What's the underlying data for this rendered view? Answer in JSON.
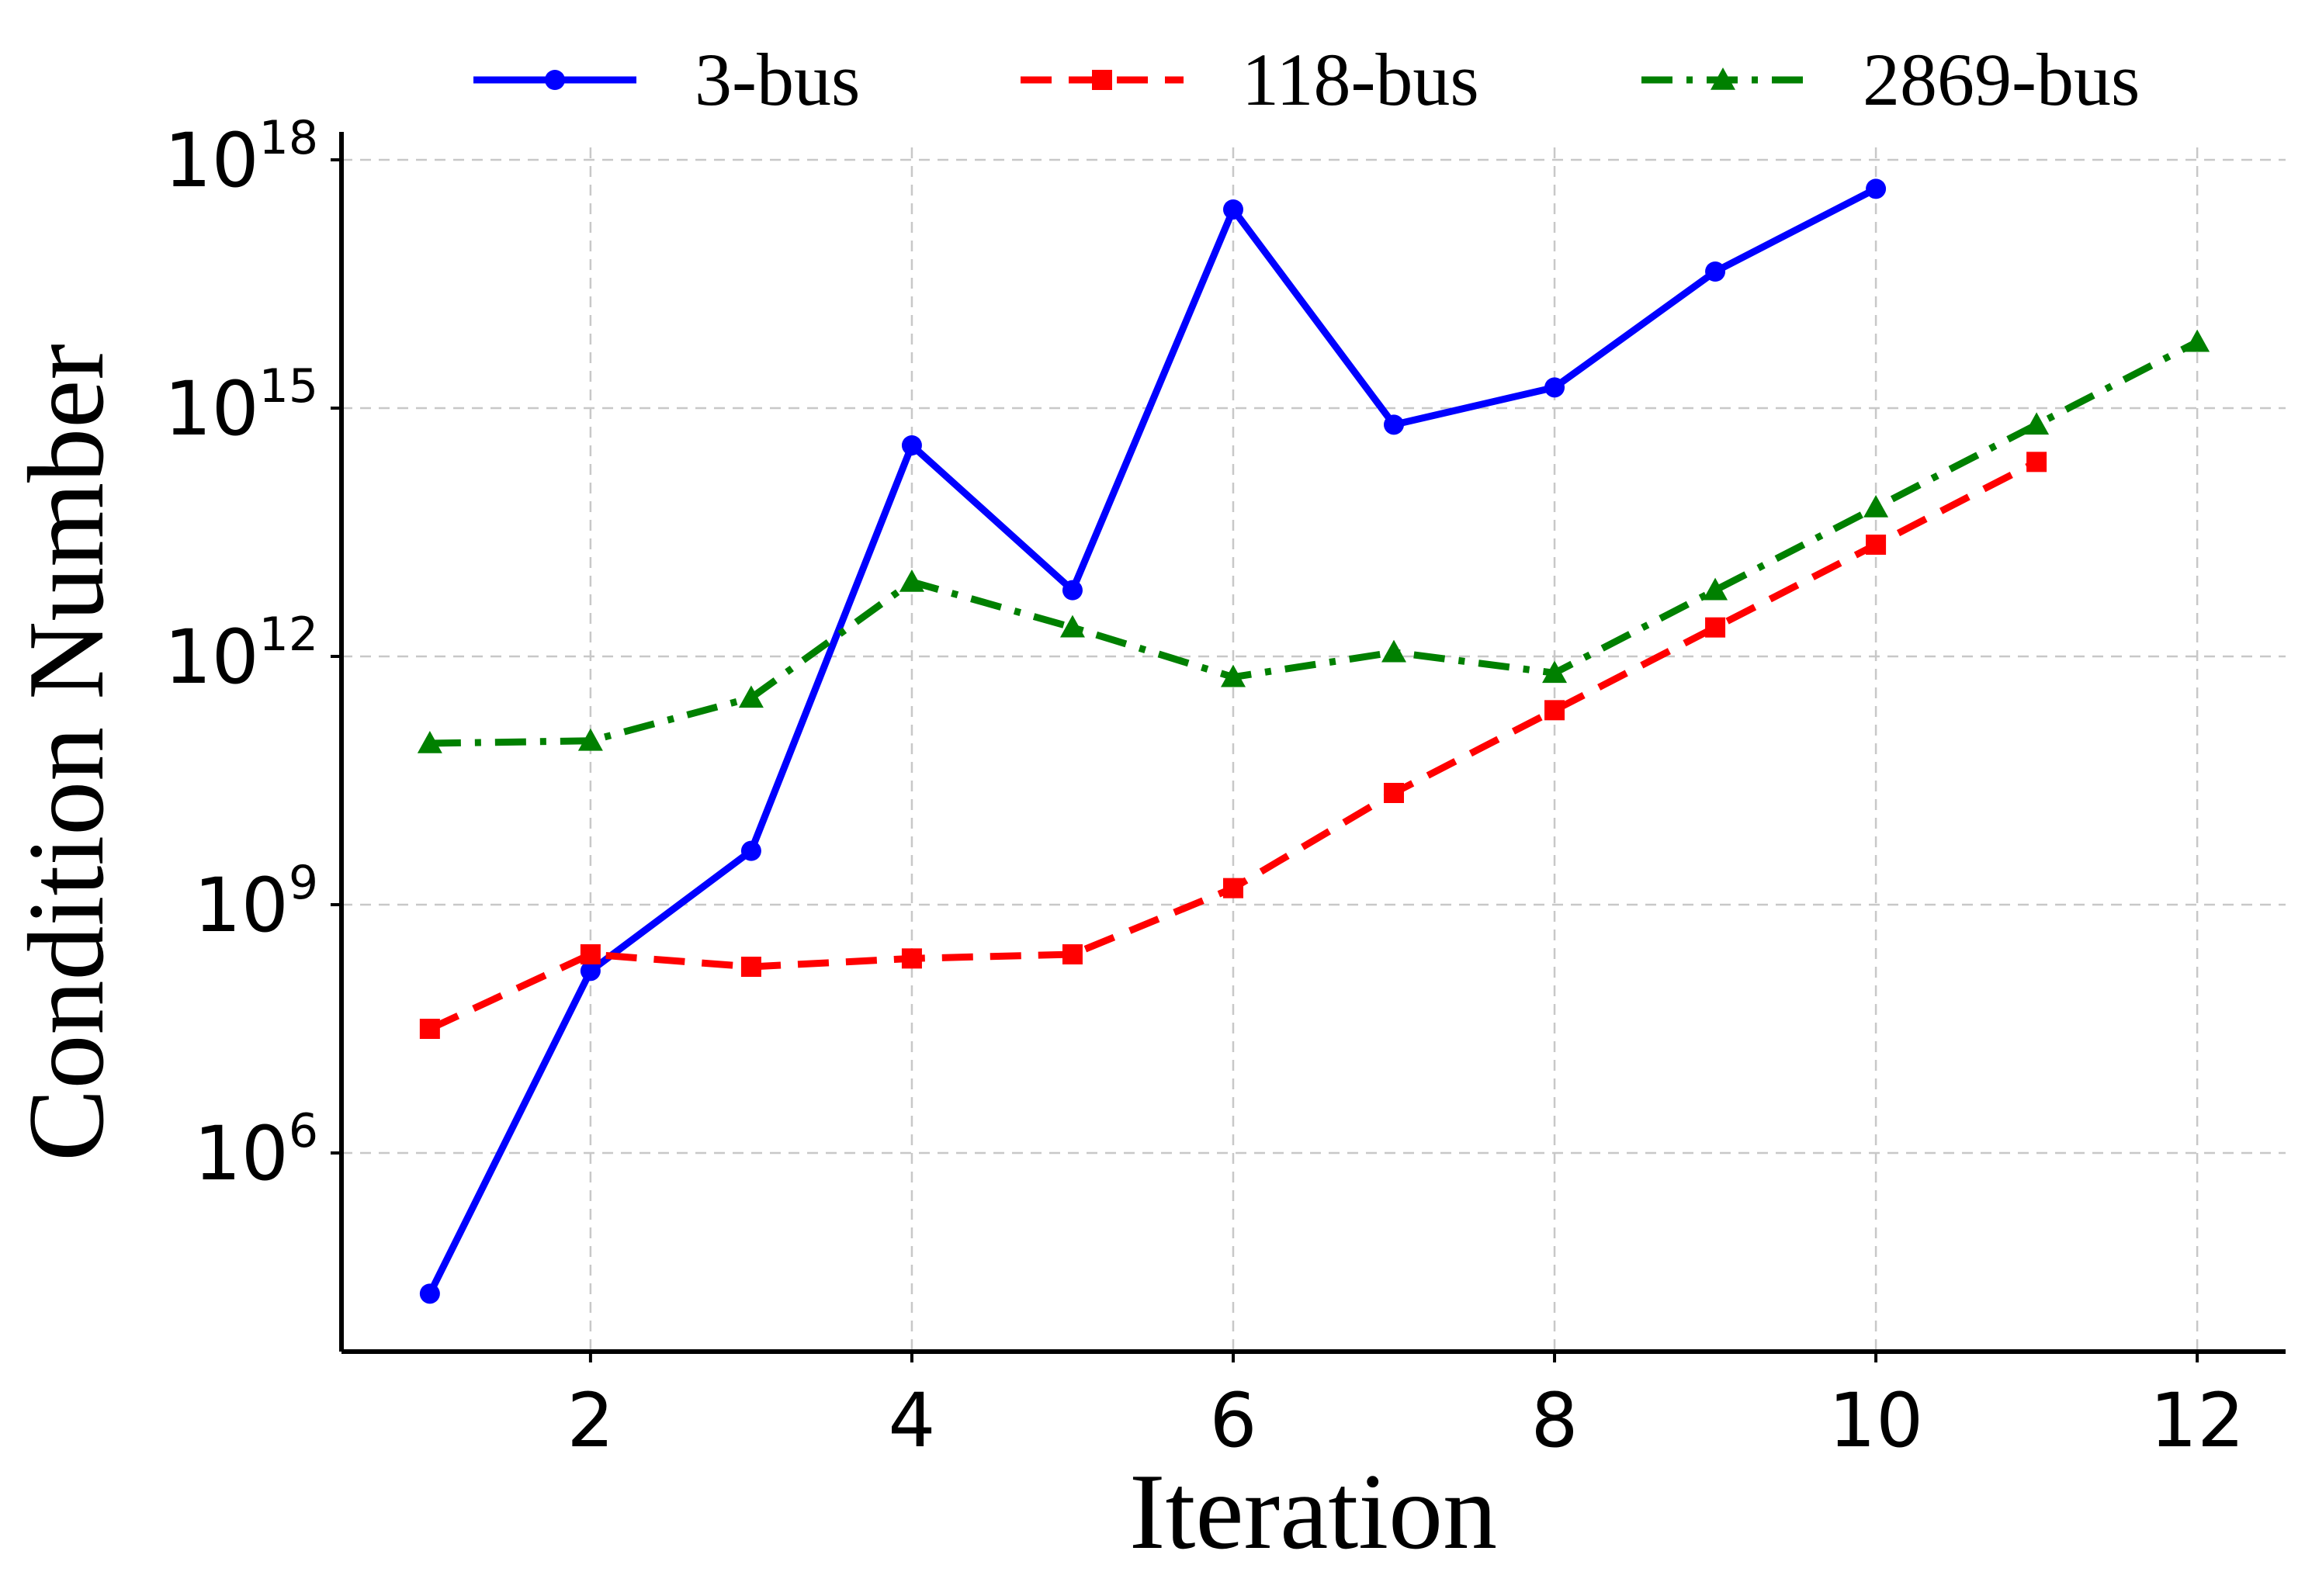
{
  "chart_data": {
    "type": "line",
    "title": "",
    "xlabel": "Iteration",
    "ylabel": "Condition Number",
    "yscale": "log",
    "xlim": [
      0.45,
      12.55
    ],
    "ylim_log10": [
      3.6,
      18.15
    ],
    "xticks": [
      2,
      4,
      6,
      8,
      10,
      12
    ],
    "yticks": [
      {
        "base": "10",
        "exp": "6",
        "log10": 6
      },
      {
        "base": "10",
        "exp": "9",
        "log10": 9
      },
      {
        "base": "10",
        "exp": "12",
        "log10": 12
      },
      {
        "base": "10",
        "exp": "15",
        "log10": 15
      },
      {
        "base": "10",
        "exp": "18",
        "log10": 18
      }
    ],
    "grid": true,
    "legend_position": "top",
    "series": [
      {
        "name": "3-bus",
        "color": "#0000ff",
        "linestyle": "solid",
        "marker": "circle",
        "x": [
          1,
          2,
          3,
          4,
          5,
          6,
          7,
          8,
          9,
          10
        ],
        "log10_y": [
          4.3,
          8.2,
          9.65,
          14.55,
          12.8,
          17.4,
          14.8,
          15.25,
          16.65,
          17.65
        ]
      },
      {
        "name": "118-bus",
        "color": "#ff0000",
        "linestyle": "dashed",
        "marker": "square",
        "x": [
          1,
          2,
          3,
          4,
          5,
          6,
          7,
          8,
          9,
          10,
          11
        ],
        "log10_y": [
          7.5,
          8.4,
          8.25,
          8.35,
          8.4,
          9.2,
          10.35,
          11.35,
          12.35,
          13.35,
          14.35
        ]
      },
      {
        "name": "2869-bus",
        "color": "#008000",
        "linestyle": "dashdot",
        "marker": "triangle",
        "x": [
          1,
          2,
          3,
          4,
          5,
          6,
          7,
          8,
          9,
          10,
          11,
          12
        ],
        "log10_y": [
          10.95,
          10.98,
          11.5,
          12.9,
          12.35,
          11.75,
          12.05,
          11.8,
          12.8,
          13.8,
          14.8,
          15.8
        ]
      }
    ]
  }
}
